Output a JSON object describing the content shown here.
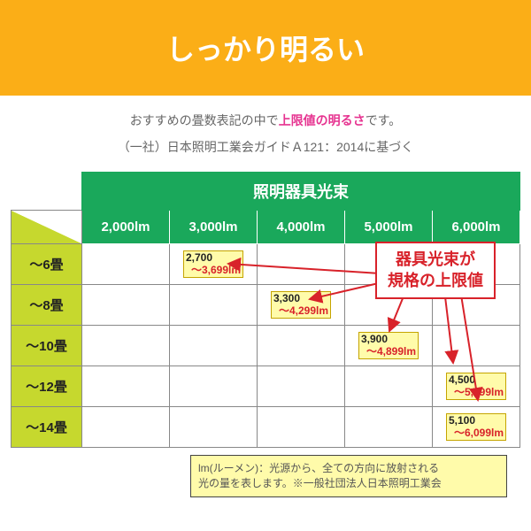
{
  "header": "しっかり明るい",
  "subtitle_before": "おすすめの畳数表記の中で",
  "subtitle_pink": "上限値の明るさ",
  "subtitle_after": "です。",
  "subtitle2": "（一社）日本照明工業会ガイドＡ121：2014に基づく",
  "table": {
    "top_header": "照明器具光束",
    "cols": [
      "2,000lm",
      "3,000lm",
      "4,000lm",
      "5,000lm",
      "6,000lm"
    ],
    "rows": [
      "～6畳",
      "～8畳",
      "～10畳",
      "～12畳",
      "～14畳"
    ],
    "chips": {
      "r0": {
        "col": 1,
        "top": "2,700",
        "bot": "～3,699lm"
      },
      "r1": {
        "col": 2,
        "top": "3,300",
        "bot": "～4,299lm"
      },
      "r2": {
        "col": 3,
        "top": "3,900",
        "bot": "～4,899lm"
      },
      "r3": {
        "col": 4,
        "top": "4,500",
        "bot": "～5,499lm"
      },
      "r4": {
        "col": 4,
        "top": "5,100",
        "bot": "～6,099lm"
      }
    }
  },
  "callout_l1": "器具光束が",
  "callout_l2": "規格の上限値",
  "note_l1": "lm(ルーメン)：光源から、全ての方向に放射される",
  "note_l2": "光の量を表します。※一般社団法人日本照明工業会",
  "colors": {
    "orange": "#fbae17",
    "green": "#1aa85b",
    "lime": "#c6d82e",
    "red": "#d8222a",
    "yellow": "#fffbaa",
    "pink": "#e63390"
  }
}
